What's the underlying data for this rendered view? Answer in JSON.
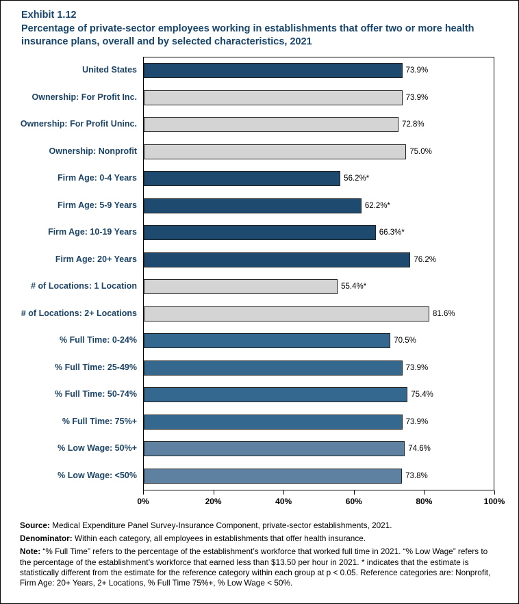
{
  "header": {
    "exhibit": "Exhibit 1.12",
    "title": "Percentage of private-sector employees working in establishments that offer two or more health insurance plans, overall and by selected characteristics, 2021"
  },
  "chart_data": {
    "type": "bar",
    "orientation": "horizontal",
    "title": "Percentage of private-sector employees working in establishments that offer two or more health insurance plans, overall and by selected characteristics, 2021",
    "xlabel": "",
    "ylabel": "",
    "xlim": [
      0,
      100
    ],
    "grid": false,
    "legend": "none",
    "x_ticks": [
      "0%",
      "20%",
      "40%",
      "60%",
      "80%",
      "100%"
    ],
    "palette": {
      "navy": "#1F4A70",
      "gray": "#D4D4D4",
      "blue": "#35688E",
      "slate": "#5E81A1"
    },
    "rows": [
      {
        "category": "United States",
        "value": 73.9,
        "display": "73.9%",
        "color": "navy"
      },
      {
        "category": "Ownership: For Profit Inc.",
        "value": 73.9,
        "display": "73.9%",
        "color": "gray"
      },
      {
        "category": "Ownership: For Profit Uninc.",
        "value": 72.8,
        "display": "72.8%",
        "color": "gray"
      },
      {
        "category": "Ownership: Nonprofit",
        "value": 75.0,
        "display": "75.0%",
        "color": "gray"
      },
      {
        "category": "Firm Age: 0-4 Years",
        "value": 56.2,
        "display": "56.2%*",
        "color": "navy"
      },
      {
        "category": "Firm Age: 5-9 Years",
        "value": 62.2,
        "display": "62.2%*",
        "color": "navy"
      },
      {
        "category": "Firm Age: 10-19 Years",
        "value": 66.3,
        "display": "66.3%*",
        "color": "navy"
      },
      {
        "category": "Firm Age: 20+ Years",
        "value": 76.2,
        "display": "76.2%",
        "color": "navy"
      },
      {
        "category": "# of Locations: 1 Location",
        "value": 55.4,
        "display": "55.4%*",
        "color": "gray"
      },
      {
        "category": "# of Locations: 2+ Locations",
        "value": 81.6,
        "display": "81.6%",
        "color": "gray"
      },
      {
        "category": "% Full Time: 0-24%",
        "value": 70.5,
        "display": "70.5%",
        "color": "blue"
      },
      {
        "category": "% Full Time: 25-49%",
        "value": 73.9,
        "display": "73.9%",
        "color": "blue"
      },
      {
        "category": "% Full Time: 50-74%",
        "value": 75.4,
        "display": "75.4%",
        "color": "blue"
      },
      {
        "category": "% Full Time: 75%+",
        "value": 73.9,
        "display": "73.9%",
        "color": "blue"
      },
      {
        "category": "% Low Wage: 50%+",
        "value": 74.6,
        "display": "74.6%",
        "color": "slate"
      },
      {
        "category": "% Low Wage: <50%",
        "value": 73.8,
        "display": "73.8%",
        "color": "slate"
      }
    ]
  },
  "footer": {
    "source_label": "Source:",
    "source_text": " Medical Expenditure Panel Survey-Insurance Component, private-sector establishments, 2021.",
    "denominator_label": "Denominator:",
    "denominator_text": " Within each category, all employees in establishments that offer health insurance.",
    "note_label": "Note:",
    "note_text": " “% Full Time” refers to the percentage of the establishment’s workforce that worked full time in 2021. “% Low Wage” refers to the percentage of the establishment’s workforce that earned less than $13.50 per hour in 2021. * indicates that the estimate is statistically different from the estimate for the reference category within each group at p < 0.05.  Reference categories are: Nonprofit, Firm Age: 20+ Years, 2+ Locations, % Full Time 75%+, % Low Wage < 50%."
  }
}
